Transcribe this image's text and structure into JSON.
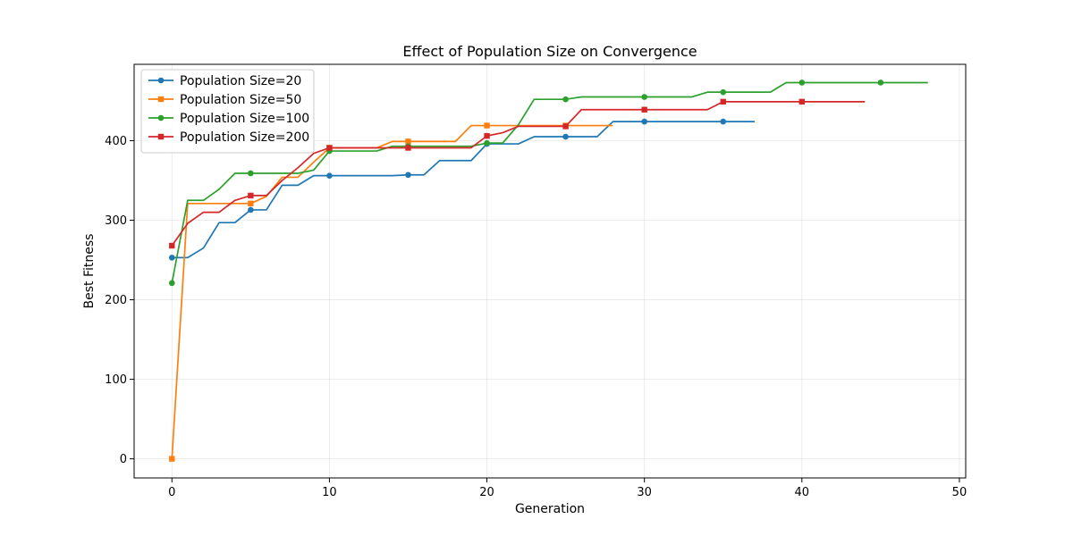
{
  "chart_data": {
    "type": "line",
    "title": "Effect of Population Size on Convergence",
    "xlabel": "Generation",
    "ylabel": "Best Fitness",
    "xlim": [
      -2.4,
      50.4
    ],
    "ylim": [
      -24,
      496
    ],
    "xticks": [
      0,
      10,
      20,
      30,
      40,
      50
    ],
    "yticks": [
      0,
      100,
      200,
      300,
      400
    ],
    "grid": true,
    "legend_position": "top-left",
    "series": [
      {
        "name": "Population Size=20",
        "color": "#1f77b4",
        "marker": "circle",
        "x": [
          0,
          1,
          2,
          3,
          4,
          5,
          6,
          7,
          8,
          9,
          10,
          11,
          12,
          13,
          14,
          15,
          16,
          17,
          18,
          19,
          20,
          21,
          22,
          23,
          24,
          25,
          26,
          27,
          28,
          29,
          30,
          31,
          32,
          33,
          34,
          35,
          36,
          37
        ],
        "y": [
          253,
          253,
          265,
          297,
          297,
          313,
          313,
          344,
          344,
          356,
          356,
          356,
          356,
          356,
          356,
          357,
          357,
          375,
          375,
          375,
          396,
          396,
          396,
          405,
          405,
          405,
          405,
          405,
          424,
          424,
          424,
          424,
          424,
          424,
          424,
          424,
          424,
          424
        ]
      },
      {
        "name": "Population Size=50",
        "color": "#ff7f0e",
        "marker": "square",
        "x": [
          0,
          1,
          2,
          3,
          4,
          5,
          6,
          7,
          8,
          9,
          10,
          11,
          12,
          13,
          14,
          15,
          16,
          17,
          18,
          19,
          20,
          21,
          22,
          23,
          24,
          25,
          26,
          27,
          28
        ],
        "y": [
          0,
          321,
          321,
          321,
          321,
          321,
          330,
          354,
          354,
          373,
          391,
          391,
          391,
          391,
          399,
          399,
          399,
          399,
          399,
          419,
          419,
          419,
          419,
          419,
          419,
          419,
          419,
          419,
          419
        ]
      },
      {
        "name": "Population Size=100",
        "color": "#2ca02c",
        "marker": "circle",
        "x": [
          0,
          1,
          2,
          3,
          4,
          5,
          6,
          7,
          8,
          9,
          10,
          11,
          12,
          13,
          14,
          15,
          16,
          17,
          18,
          19,
          20,
          21,
          22,
          23,
          24,
          25,
          26,
          27,
          28,
          29,
          30,
          31,
          32,
          33,
          34,
          35,
          36,
          37,
          38,
          39,
          40,
          41,
          42,
          43,
          44,
          45,
          46,
          47,
          48
        ],
        "y": [
          221,
          325,
          325,
          339,
          359,
          359,
          359,
          359,
          359,
          363,
          387,
          387,
          387,
          387,
          393,
          393,
          393,
          393,
          393,
          393,
          397,
          397,
          420,
          452,
          452,
          452,
          455,
          455,
          455,
          455,
          455,
          455,
          455,
          455,
          461,
          461,
          461,
          461,
          461,
          473,
          473,
          473,
          473,
          473,
          473,
          473,
          473,
          473,
          473
        ]
      },
      {
        "name": "Population Size=200",
        "color": "#d62728",
        "marker": "square",
        "x": [
          0,
          1,
          2,
          3,
          4,
          5,
          6,
          7,
          8,
          9,
          10,
          11,
          12,
          13,
          14,
          15,
          16,
          17,
          18,
          19,
          20,
          21,
          22,
          23,
          24,
          25,
          26,
          27,
          28,
          29,
          30,
          31,
          32,
          33,
          34,
          35,
          36,
          37,
          38,
          39,
          40,
          41,
          42,
          43,
          44
        ],
        "y": [
          268,
          296,
          310,
          310,
          325,
          331,
          331,
          350,
          366,
          384,
          391,
          391,
          391,
          391,
          391,
          391,
          391,
          391,
          391,
          391,
          406,
          410,
          418,
          418,
          418,
          418,
          439,
          439,
          439,
          439,
          439,
          439,
          439,
          439,
          439,
          449,
          449,
          449,
          449,
          449,
          449,
          449,
          449,
          449,
          449
        ]
      }
    ]
  }
}
